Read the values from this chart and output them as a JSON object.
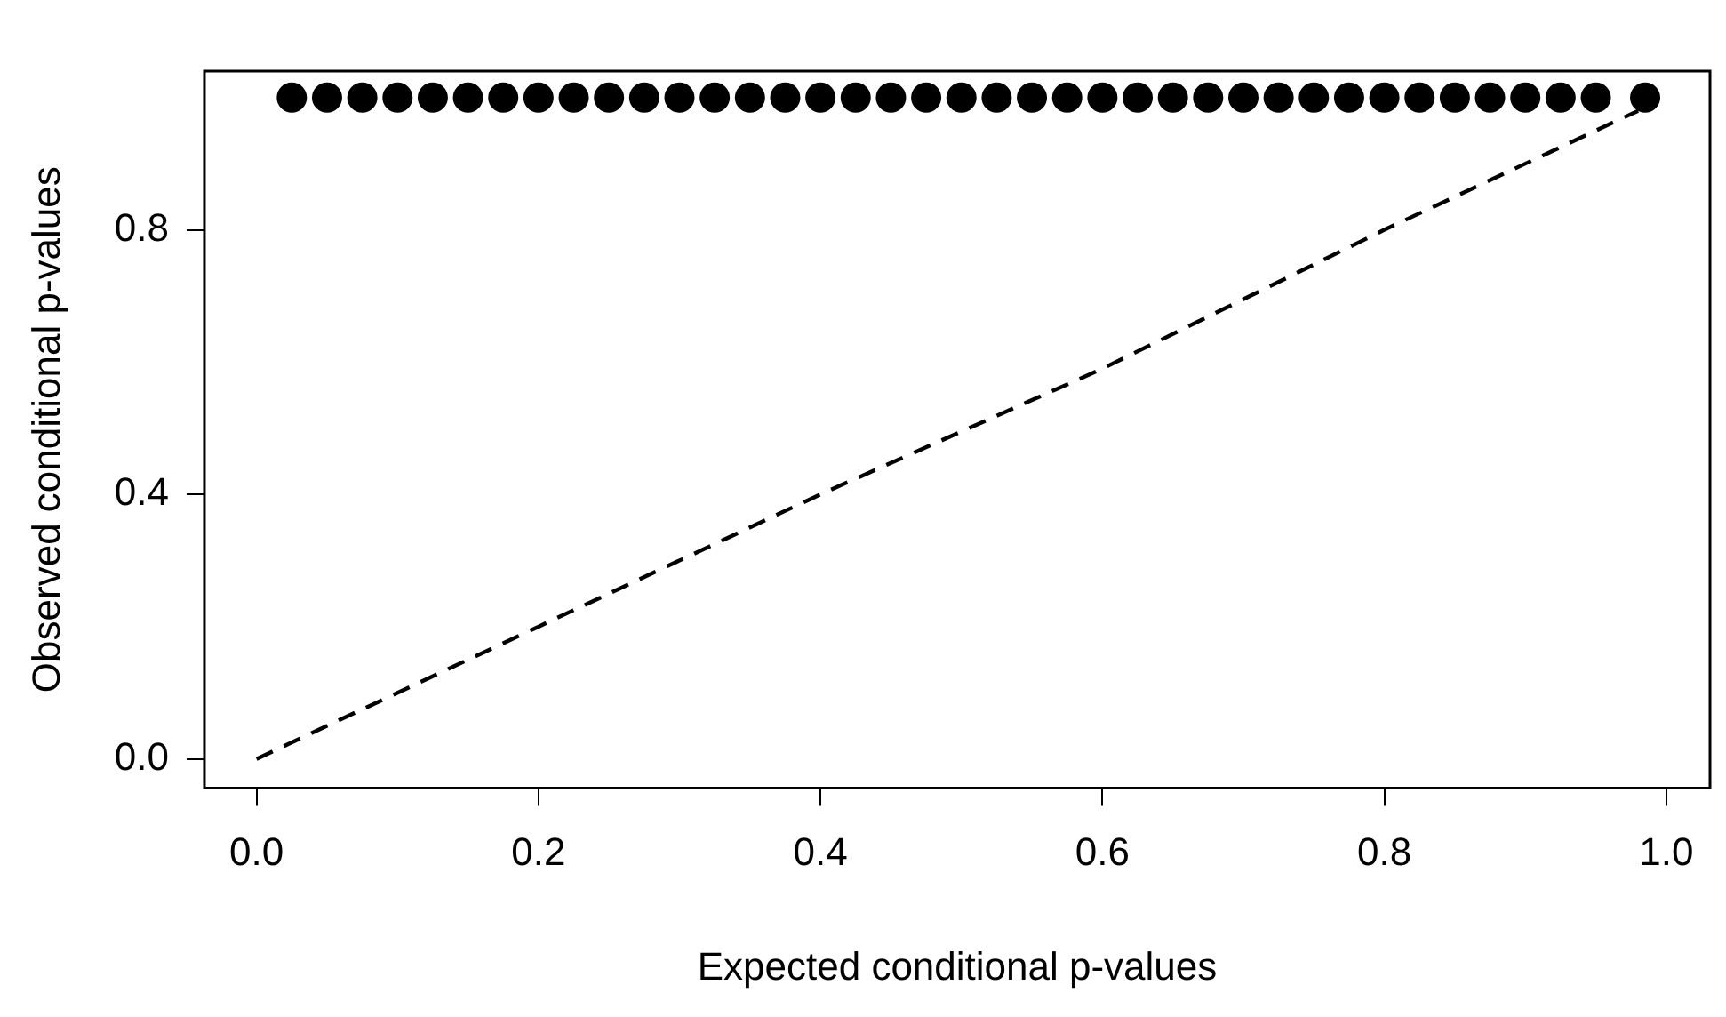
{
  "chart_data": {
    "type": "scatter",
    "xlabel": "Expected conditional p-values",
    "ylabel": "Observed conditional p-values",
    "xlim": [
      -0.037,
      1.031
    ],
    "ylim": [
      -0.044,
      1.04
    ],
    "xticks": [
      {
        "value": 0,
        "label": "0.0"
      },
      {
        "value": 0.2,
        "label": "0.2"
      },
      {
        "value": 0.4,
        "label": "0.4"
      },
      {
        "value": 0.6,
        "label": "0.6"
      },
      {
        "value": 0.8,
        "label": "0.8"
      },
      {
        "value": 1,
        "label": "1.0"
      }
    ],
    "yticks": [
      {
        "value": 0,
        "label": "0.0"
      },
      {
        "value": 0.4,
        "label": "0.4"
      },
      {
        "value": 0.8,
        "label": "0.8"
      }
    ],
    "grid": false,
    "legend": false,
    "series": [
      {
        "type": "scatter",
        "color": "#000000",
        "marker": "circle",
        "x": [
          0.025,
          0.05,
          0.075,
          0.1,
          0.125,
          0.15,
          0.175,
          0.2,
          0.225,
          0.25,
          0.275,
          0.3,
          0.325,
          0.35,
          0.375,
          0.4,
          0.425,
          0.45,
          0.475,
          0.5,
          0.525,
          0.55,
          0.575,
          0.6,
          0.625,
          0.65,
          0.675,
          0.7,
          0.725,
          0.75,
          0.775,
          0.8,
          0.825,
          0.85,
          0.875,
          0.9,
          0.925,
          0.95,
          0.985
        ],
        "values": [
          1,
          1,
          1,
          1,
          1,
          1,
          1,
          1,
          1,
          1,
          1,
          1,
          1,
          1,
          1,
          1,
          1,
          1,
          1,
          1,
          1,
          1,
          1,
          1,
          1,
          1,
          1,
          1,
          1,
          1,
          1,
          1,
          1,
          1,
          1,
          1,
          1,
          1,
          1
        ]
      },
      {
        "type": "line",
        "color": "#000000",
        "marker": "none",
        "line_style": "dashed",
        "x": [
          0,
          0.2,
          0.4,
          0.6,
          0.8,
          0.98
        ],
        "values": [
          0,
          0.2,
          0.4,
          0.59,
          0.8,
          0.98
        ]
      }
    ]
  }
}
